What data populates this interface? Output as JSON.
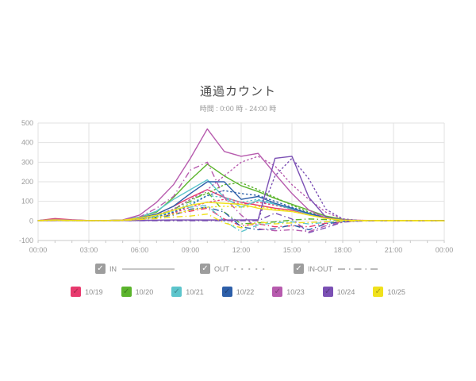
{
  "header": {
    "title": "通過カウント",
    "subtitle": "時間 : 0:00 時 - 24:00 時"
  },
  "colors": {
    "grid": "#e2e2e2",
    "axis": "#c9c9c9",
    "tick_label": "#9b9b9b",
    "legend_text": "#8c8c8c",
    "gray_checkbox": "#9d9d9d",
    "legend_sample_line": "#a3a3a3"
  },
  "series_legend": {
    "items": [
      {
        "label": "IN",
        "dash": "solid",
        "checked": true
      },
      {
        "label": "OUT",
        "dash": "dotted",
        "checked": true
      },
      {
        "label": "IN-OUT",
        "dash": "dashdot",
        "checked": true
      }
    ]
  },
  "date_legend": {
    "items": [
      {
        "label": "10/19",
        "color": "#e83a6e",
        "checked": true
      },
      {
        "label": "10/20",
        "color": "#5bb42c",
        "checked": true
      },
      {
        "label": "10/21",
        "color": "#5cc5cc",
        "checked": true
      },
      {
        "label": "10/22",
        "color": "#2d5fa9",
        "checked": true
      },
      {
        "label": "10/23",
        "color": "#b75bae",
        "checked": true
      },
      {
        "label": "10/24",
        "color": "#7b50b4",
        "checked": true
      },
      {
        "label": "10/25",
        "color": "#f0e11c",
        "checked": true
      }
    ]
  },
  "chart_data": {
    "type": "line",
    "title": "通過カウント",
    "subtitle": "時間 : 0:00 時 - 24:00 時",
    "xlabel": "",
    "ylabel": "",
    "grid": true,
    "xlim": [
      0,
      24
    ],
    "ylim": [
      -100,
      500
    ],
    "x_unit": "hours",
    "x_ticks": [
      "00:00",
      "03:00",
      "06:00",
      "09:00",
      "12:00",
      "15:00",
      "18:00",
      "21:00",
      "00:00"
    ],
    "x_tick_hours": [
      0,
      3,
      6,
      9,
      12,
      15,
      18,
      21,
      24
    ],
    "y_ticks": [
      500,
      400,
      300,
      200,
      100,
      0,
      -100
    ],
    "legend_position": "bottom",
    "series": [
      {
        "name": "10/19 IN",
        "date": "10/19",
        "kind": "IN",
        "dash": "solid",
        "color": "#e83a6e",
        "values": [
          2,
          12,
          6,
          2,
          2,
          4,
          15,
          35,
          75,
          120,
          160,
          120,
          95,
          80,
          65,
          55,
          35,
          15,
          5,
          3,
          2,
          2,
          2,
          2,
          1
        ]
      },
      {
        "name": "10/19 OUT",
        "date": "10/19",
        "kind": "OUT",
        "dash": "dotted",
        "color": "#e83a6e",
        "values": [
          1,
          2,
          2,
          1,
          1,
          2,
          8,
          20,
          40,
          70,
          95,
          110,
          85,
          95,
          80,
          60,
          38,
          18,
          6,
          3,
          2,
          2,
          2,
          2,
          1
        ]
      },
      {
        "name": "10/19 IN-OUT",
        "date": "10/19",
        "kind": "IN-OUT",
        "dash": "dashdot",
        "color": "#e83a6e",
        "values": [
          1,
          10,
          4,
          1,
          1,
          2,
          7,
          15,
          35,
          50,
          65,
          10,
          -25,
          -15,
          -30,
          -25,
          -30,
          -12,
          -3,
          0,
          0,
          0,
          0,
          0,
          0
        ]
      },
      {
        "name": "10/20 IN",
        "date": "10/20",
        "kind": "IN",
        "dash": "solid",
        "color": "#5bb42c",
        "values": [
          2,
          8,
          4,
          2,
          2,
          5,
          20,
          45,
          120,
          210,
          290,
          230,
          180,
          150,
          115,
          85,
          55,
          25,
          8,
          2,
          2,
          2,
          2,
          2,
          1
        ]
      },
      {
        "name": "10/20 OUT",
        "date": "10/20",
        "kind": "OUT",
        "dash": "dotted",
        "color": "#5bb42c",
        "values": [
          1,
          2,
          2,
          1,
          1,
          2,
          10,
          25,
          60,
          110,
          140,
          185,
          195,
          160,
          120,
          80,
          45,
          18,
          5,
          2,
          2,
          2,
          2,
          2,
          1
        ]
      },
      {
        "name": "10/20 IN-OUT",
        "date": "10/20",
        "kind": "IN-OUT",
        "dash": "dashdot",
        "color": "#5bb42c",
        "values": [
          1,
          6,
          2,
          1,
          1,
          3,
          10,
          20,
          60,
          100,
          150,
          45,
          -15,
          -10,
          -5,
          5,
          10,
          7,
          3,
          0,
          0,
          0,
          0,
          0,
          0
        ]
      },
      {
        "name": "10/21 IN",
        "date": "10/21",
        "kind": "IN",
        "dash": "solid",
        "color": "#5cc5cc",
        "values": [
          2,
          6,
          3,
          2,
          2,
          4,
          20,
          50,
          110,
          160,
          210,
          120,
          70,
          105,
          85,
          60,
          35,
          14,
          4,
          2,
          2,
          2,
          2,
          2,
          1
        ]
      },
      {
        "name": "10/21 OUT",
        "date": "10/21",
        "kind": "OUT",
        "dash": "dotted",
        "color": "#5cc5cc",
        "values": [
          1,
          2,
          2,
          1,
          1,
          2,
          9,
          22,
          50,
          90,
          130,
          120,
          95,
          110,
          90,
          65,
          38,
          16,
          5,
          2,
          2,
          2,
          2,
          2,
          1
        ]
      },
      {
        "name": "10/21 IN-OUT",
        "date": "10/21",
        "kind": "IN-OUT",
        "dash": "dashdot",
        "color": "#5cc5cc",
        "values": [
          1,
          4,
          1,
          1,
          1,
          2,
          11,
          28,
          60,
          70,
          80,
          0,
          -55,
          -20,
          -10,
          -5,
          -15,
          -8,
          -2,
          0,
          0,
          0,
          0,
          0,
          0
        ]
      },
      {
        "name": "10/22 IN",
        "date": "10/22",
        "kind": "IN",
        "dash": "solid",
        "color": "#2d5fa9",
        "values": [
          2,
          5,
          3,
          2,
          2,
          4,
          15,
          35,
          75,
          140,
          200,
          200,
          110,
          125,
          90,
          65,
          38,
          15,
          5,
          2,
          2,
          2,
          2,
          2,
          1
        ]
      },
      {
        "name": "10/22 OUT",
        "date": "10/22",
        "kind": "OUT",
        "dash": "dotted",
        "color": "#2d5fa9",
        "values": [
          1,
          2,
          2,
          1,
          1,
          2,
          8,
          18,
          45,
          80,
          130,
          155,
          140,
          130,
          100,
          70,
          40,
          18,
          6,
          2,
          2,
          2,
          2,
          2,
          1
        ]
      },
      {
        "name": "10/22 IN-OUT",
        "date": "10/22",
        "kind": "IN-OUT",
        "dash": "dashdot",
        "color": "#2d5fa9",
        "values": [
          1,
          3,
          1,
          1,
          1,
          2,
          7,
          17,
          30,
          60,
          70,
          45,
          -30,
          -45,
          -40,
          -20,
          -45,
          -15,
          -4,
          0,
          0,
          0,
          0,
          0,
          0
        ]
      },
      {
        "name": "10/23 IN",
        "date": "10/23",
        "kind": "IN",
        "dash": "solid",
        "color": "#b75bae",
        "values": [
          2,
          8,
          5,
          2,
          2,
          5,
          30,
          95,
          185,
          320,
          470,
          355,
          330,
          345,
          240,
          140,
          55,
          15,
          5,
          2,
          2,
          2,
          2,
          2,
          1
        ]
      },
      {
        "name": "10/23 OUT",
        "date": "10/23",
        "kind": "OUT",
        "dash": "dotted",
        "color": "#b75bae",
        "values": [
          1,
          2,
          2,
          1,
          1,
          2,
          10,
          30,
          60,
          110,
          160,
          230,
          300,
          330,
          280,
          185,
          110,
          45,
          10,
          3,
          2,
          2,
          2,
          2,
          1
        ]
      },
      {
        "name": "10/23 IN-OUT",
        "date": "10/23",
        "kind": "IN-OUT",
        "dash": "dashdot",
        "color": "#b75bae",
        "values": [
          1,
          6,
          3,
          1,
          1,
          3,
          20,
          65,
          125,
          260,
          300,
          120,
          30,
          -40,
          -50,
          -45,
          -55,
          -25,
          -5,
          0,
          0,
          0,
          0,
          0,
          0
        ]
      },
      {
        "name": "10/24 IN",
        "date": "10/24",
        "kind": "IN",
        "dash": "solid",
        "color": "#7b50b4",
        "values": [
          1,
          2,
          2,
          1,
          1,
          2,
          3,
          4,
          5,
          5,
          5,
          5,
          5,
          6,
          320,
          330,
          120,
          20,
          4,
          1,
          1,
          1,
          1,
          1,
          1
        ]
      },
      {
        "name": "10/24 OUT",
        "date": "10/24",
        "kind": "OUT",
        "dash": "dotted",
        "color": "#7b50b4",
        "values": [
          1,
          1,
          1,
          1,
          1,
          1,
          2,
          3,
          4,
          4,
          4,
          4,
          4,
          5,
          230,
          320,
          215,
          60,
          10,
          2,
          1,
          1,
          1,
          1,
          1
        ]
      },
      {
        "name": "10/24 IN-OUT",
        "date": "10/24",
        "kind": "IN-OUT",
        "dash": "dashdot",
        "color": "#7b50b4",
        "values": [
          0,
          1,
          1,
          0,
          0,
          1,
          1,
          1,
          1,
          1,
          1,
          1,
          1,
          1,
          40,
          10,
          -60,
          -35,
          -6,
          -1,
          0,
          0,
          0,
          0,
          0
        ]
      },
      {
        "name": "10/25 IN",
        "date": "10/25",
        "kind": "IN",
        "dash": "solid",
        "color": "#f0e11c",
        "values": [
          2,
          5,
          3,
          2,
          2,
          4,
          15,
          30,
          55,
          80,
          95,
          90,
          85,
          65,
          55,
          48,
          30,
          13,
          4,
          2,
          2,
          2,
          2,
          2,
          1
        ]
      },
      {
        "name": "10/25 OUT",
        "date": "10/25",
        "kind": "OUT",
        "dash": "dotted",
        "color": "#f0e11c",
        "values": [
          1,
          2,
          2,
          1,
          1,
          2,
          8,
          18,
          35,
          55,
          70,
          75,
          70,
          75,
          60,
          48,
          30,
          13,
          4,
          2,
          2,
          2,
          2,
          2,
          1
        ]
      },
      {
        "name": "10/25 IN-OUT",
        "date": "10/25",
        "kind": "IN-OUT",
        "dash": "dashdot",
        "color": "#f0e11c",
        "values": [
          1,
          3,
          1,
          1,
          1,
          2,
          7,
          12,
          20,
          25,
          35,
          -10,
          -35,
          -5,
          -15,
          -10,
          -8,
          -4,
          -1,
          0,
          0,
          0,
          0,
          0,
          0
        ]
      }
    ]
  }
}
